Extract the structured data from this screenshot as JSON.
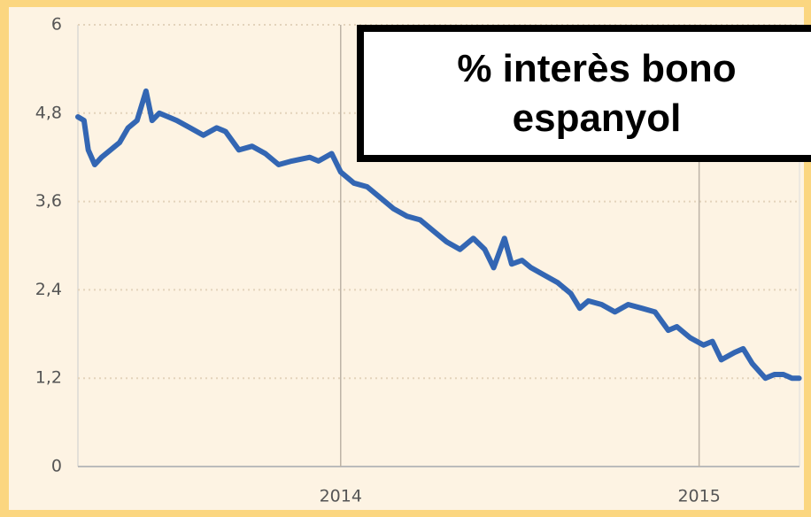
{
  "chart_data": {
    "type": "line",
    "annotation": "% interès bono espanyol",
    "x": [
      2013.267,
      2013.284,
      2013.296,
      2013.314,
      2013.333,
      2013.358,
      2013.383,
      2013.407,
      2013.432,
      2013.457,
      2013.474,
      2013.494,
      2013.519,
      2013.543,
      2013.58,
      2013.617,
      2013.654,
      2013.679,
      2013.716,
      2013.753,
      2013.79,
      2013.827,
      2013.864,
      2013.914,
      2013.938,
      2013.975,
      2014.0,
      2014.037,
      2014.074,
      2014.111,
      2014.148,
      2014.185,
      2014.222,
      2014.259,
      2014.296,
      2014.333,
      2014.37,
      2014.402,
      2014.427,
      2014.457,
      2014.477,
      2014.506,
      2014.531,
      2014.568,
      2014.605,
      2014.642,
      2014.667,
      2014.691,
      2014.728,
      2014.765,
      2014.802,
      2014.84,
      2014.877,
      2014.914,
      2014.938,
      2014.975,
      2015.012,
      2015.037,
      2015.062,
      2015.099,
      2015.123,
      2015.148,
      2015.185,
      2015.21,
      2015.235,
      2015.259,
      2015.279
    ],
    "series": [
      {
        "name": "bono",
        "color": "#3366b3",
        "values": [
          4.75,
          4.7,
          4.3,
          4.1,
          4.2,
          4.3,
          4.4,
          4.6,
          4.7,
          5.1,
          4.7,
          4.8,
          4.75,
          4.7,
          4.6,
          4.5,
          4.6,
          4.55,
          4.3,
          4.35,
          4.25,
          4.1,
          4.15,
          4.2,
          4.15,
          4.25,
          4.0,
          3.85,
          3.8,
          3.65,
          3.5,
          3.4,
          3.35,
          3.2,
          3.05,
          2.95,
          3.1,
          2.95,
          2.7,
          3.1,
          2.75,
          2.8,
          2.7,
          2.6,
          2.5,
          2.35,
          2.15,
          2.25,
          2.2,
          2.1,
          2.2,
          2.15,
          2.1,
          1.85,
          1.9,
          1.75,
          1.65,
          1.7,
          1.45,
          1.55,
          1.6,
          1.4,
          1.2,
          1.25,
          1.25,
          1.2,
          1.2
        ]
      }
    ],
    "xlim": [
      2013.267,
      2015.28
    ],
    "xticks": [
      2014,
      2015
    ],
    "ylim": [
      0,
      6
    ],
    "yticks": [
      0,
      {
        "value": 1.2,
        "label": "1,2"
      },
      {
        "value": 2.4,
        "label": "2,4"
      },
      {
        "value": 3.6,
        "label": "3,6"
      },
      {
        "value": 4.8,
        "label": "4,8"
      },
      6
    ],
    "grid": true
  }
}
